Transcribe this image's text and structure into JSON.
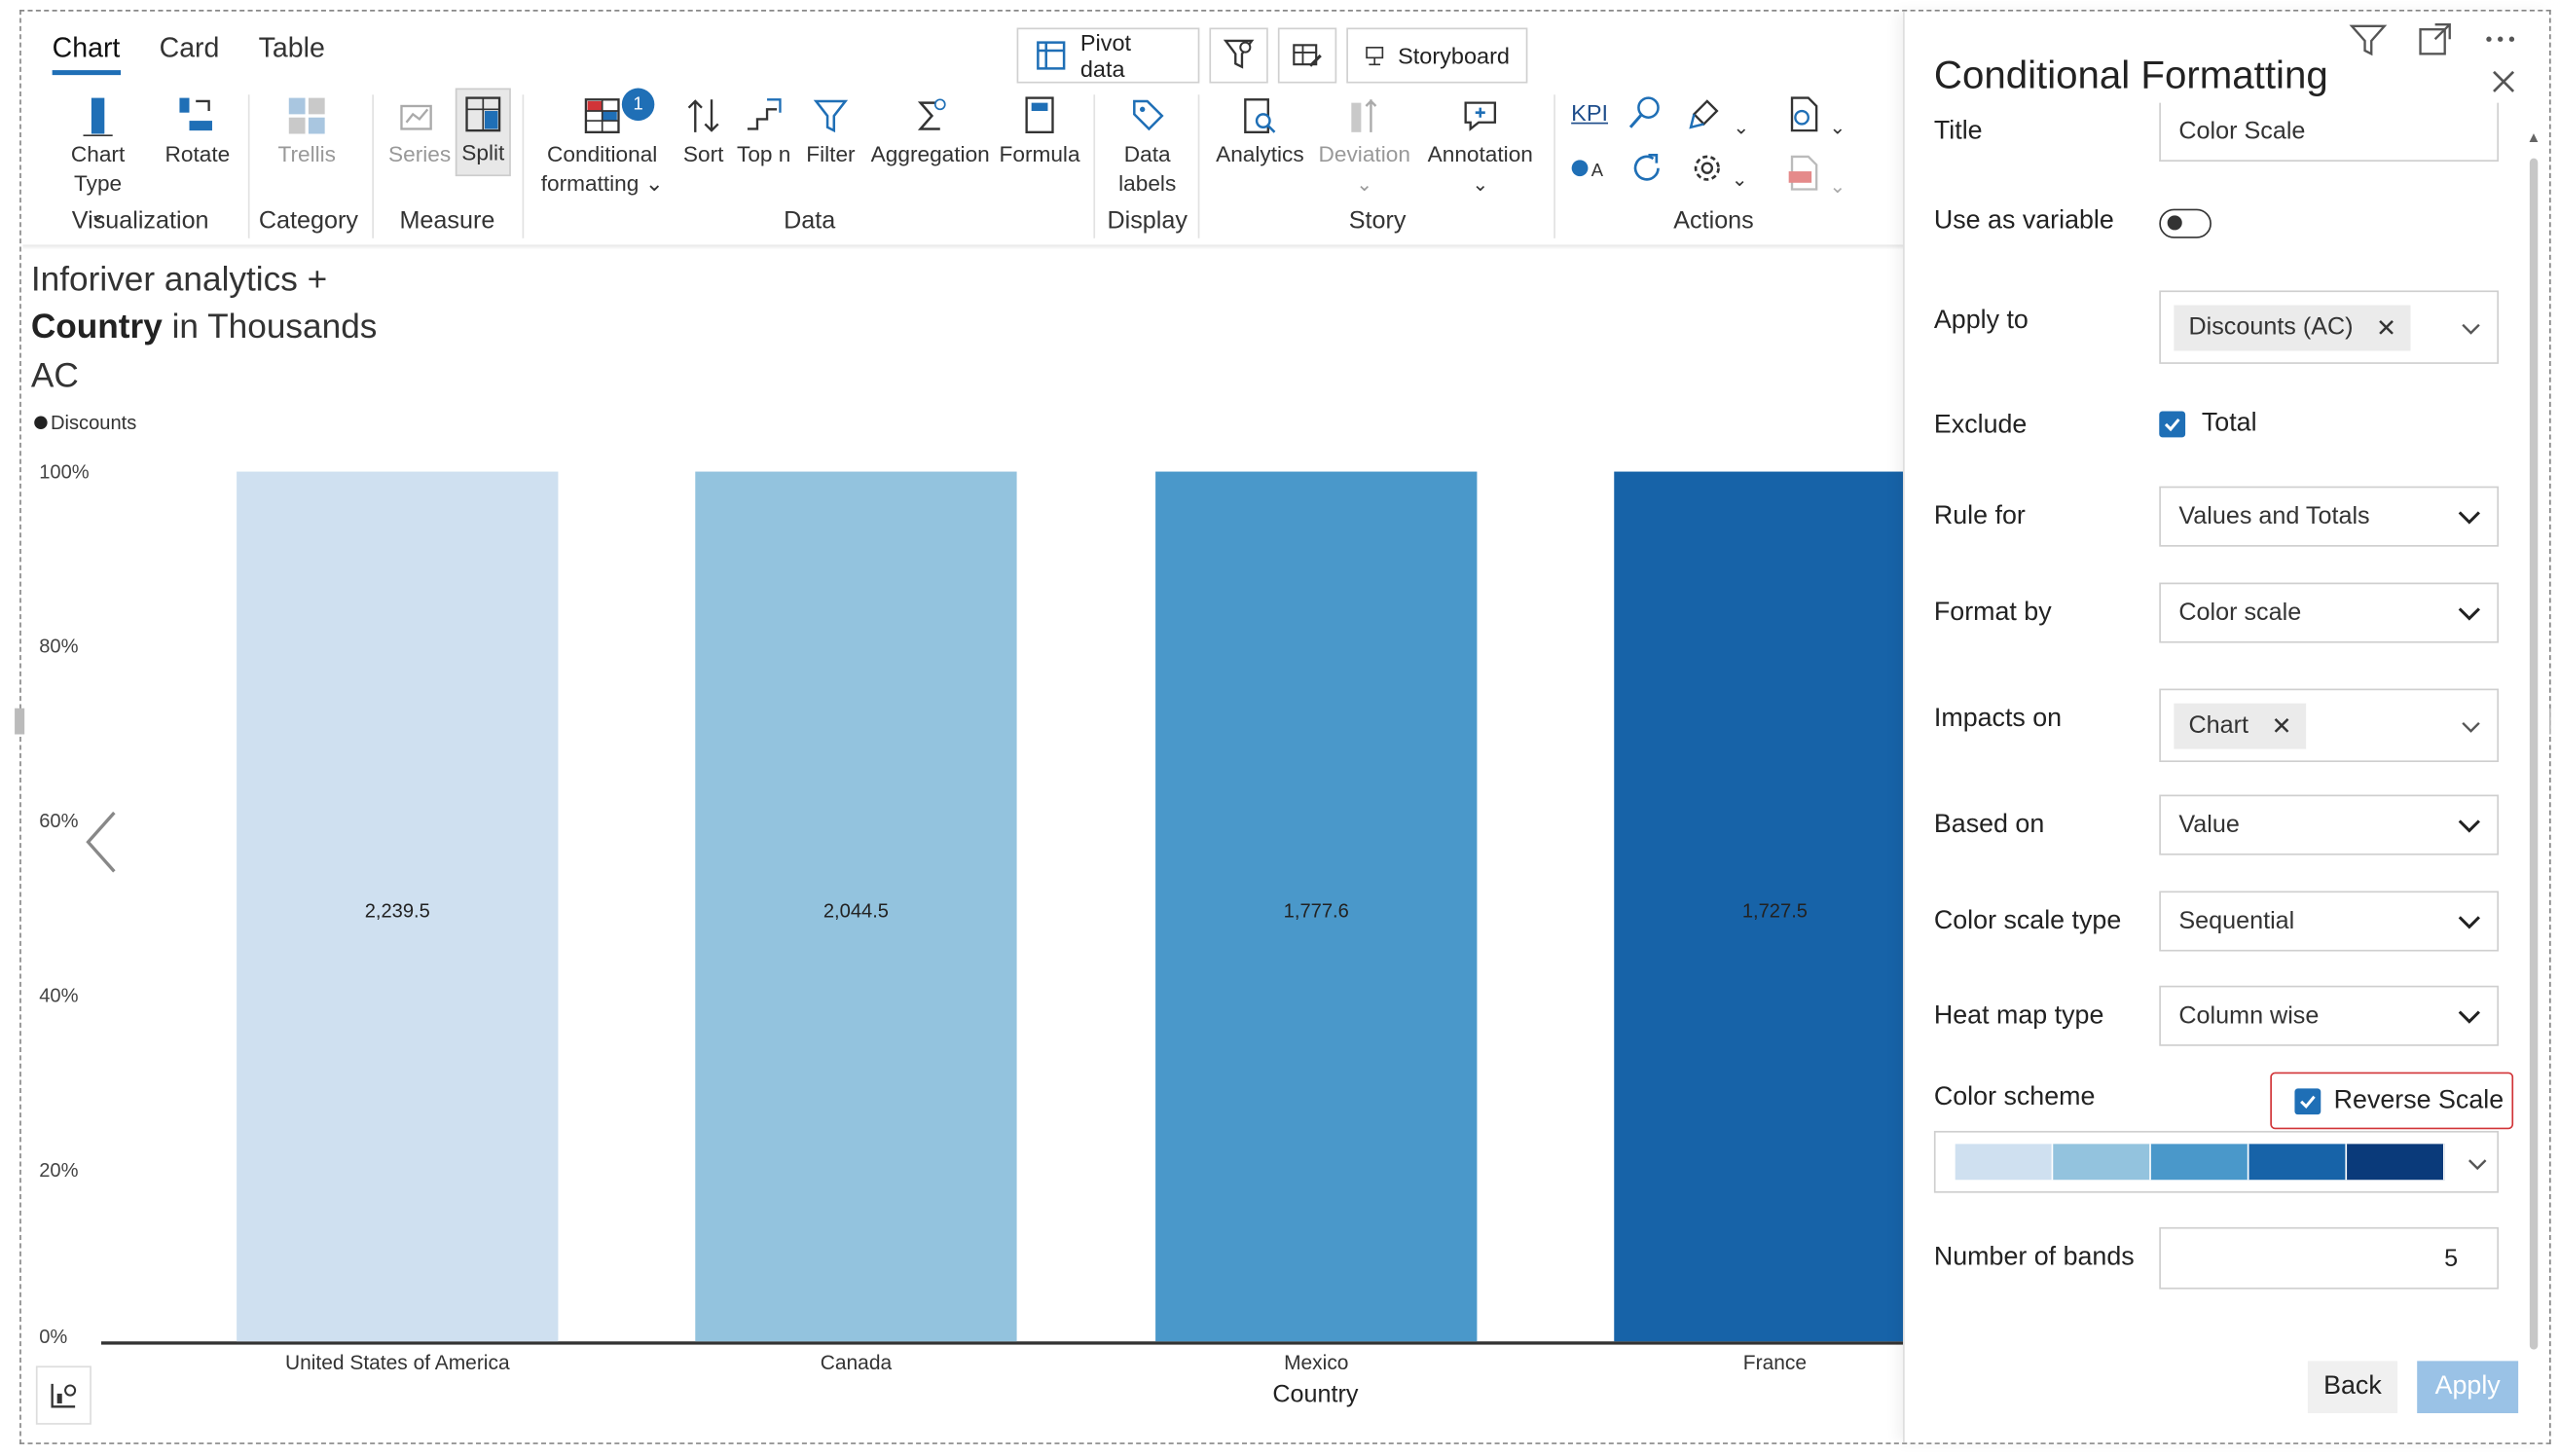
{
  "ribbon_tabs": [
    "Chart",
    "Card",
    "Table"
  ],
  "top_buttons": {
    "pivot": "Pivot data",
    "storyboard": "Storyboard"
  },
  "ribbon": {
    "chart_type": "Chart Type",
    "rotate": "Rotate",
    "trellis": "Trellis",
    "series": "Series",
    "split": "Split",
    "conditional_1": "Conditional",
    "conditional_2": "formatting",
    "badge": "1",
    "sort": "Sort",
    "topn": "Top n",
    "filter": "Filter",
    "aggregation": "Aggregation",
    "formula": "Formula",
    "data_labels_1": "Data",
    "data_labels_2": "labels",
    "analytics": "Analytics",
    "deviation": "Deviation",
    "annotation": "Annotation",
    "kpi": "KPI",
    "groups": {
      "visualization": "Visualization",
      "category": "Category",
      "measure": "Measure",
      "data": "Data",
      "display": "Display",
      "story": "Story",
      "actions": "Actions"
    }
  },
  "chart_title": {
    "line1": "Inforiver analytics +",
    "bold": "Country",
    "line2_rest": " in Thousands",
    "line3": "AC"
  },
  "chart_data": {
    "type": "bar",
    "categories": [
      "United States of America",
      "Canada",
      "Mexico",
      "France"
    ],
    "series": [
      {
        "name": "Discounts",
        "values": [
          2239.5,
          2044.5,
          1777.6,
          1727.5
        ]
      }
    ],
    "data_labels": [
      "2,239.5",
      "2,044.5",
      "1,777.6",
      "1,727.5"
    ],
    "bar_heights_pct": [
      100,
      100,
      100,
      100
    ],
    "bar_colors": [
      "#cfe0f0",
      "#93c3de",
      "#4a98ca",
      "#1763a8"
    ],
    "y_ticks": [
      "100%",
      "80%",
      "60%",
      "40%",
      "20%",
      "0%"
    ],
    "xlabel": "Country",
    "ylim": [
      0,
      100
    ]
  },
  "panel": {
    "title": "Conditional Formatting",
    "labels": {
      "title": "Title",
      "variable": "Use as variable",
      "apply_to": "Apply to",
      "exclude": "Exclude",
      "rule_for": "Rule for",
      "format_by": "Format by",
      "impacts_on": "Impacts on",
      "based_on": "Based on",
      "scale_type": "Color scale type",
      "heatmap": "Heat map type",
      "scheme": "Color scheme",
      "bands": "Number of bands"
    },
    "values": {
      "title": "Color Scale",
      "apply_to_chip": "Discounts (AC)",
      "exclude": "Total",
      "rule_for": "Values and Totals",
      "format_by": "Color scale",
      "impacts_on_chip": "Chart",
      "based_on": "Value",
      "scale_type": "Sequential",
      "heatmap": "Column wise",
      "reverse": "Reverse Scale",
      "bands": "5"
    },
    "scheme_colors": [
      "#cfe0f0",
      "#93c3de",
      "#4a98ca",
      "#1763a8",
      "#0a3a7a"
    ],
    "back": "Back",
    "apply": "Apply"
  }
}
